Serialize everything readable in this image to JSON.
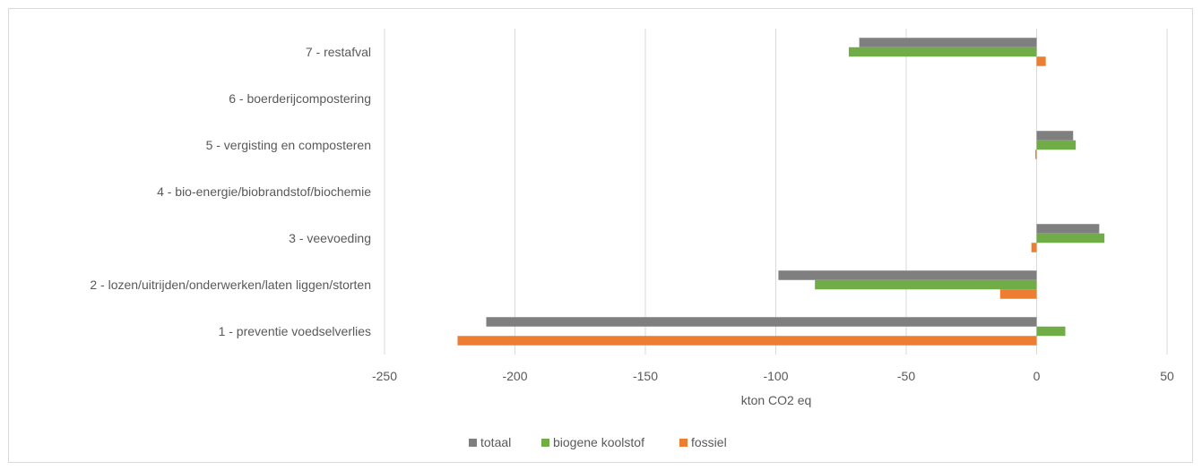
{
  "chart_data": {
    "type": "bar",
    "orientation": "horizontal",
    "categories": [
      "7 - restafval",
      "6 - boerderijcompostering",
      "5 - vergisting en composteren",
      "4 - bio-energie/biobrandstof/biochemie",
      "3 - veevoeding",
      "2 - lozen/uitrijden/onderwerken/laten liggen/storten",
      "1 - preventie voedselverlies"
    ],
    "series": [
      {
        "name": "totaal",
        "color": "#7f7f7f",
        "values": [
          -68,
          0,
          14,
          0,
          24,
          -99,
          -211
        ]
      },
      {
        "name": "biogene koolstof",
        "color": "#70ad47",
        "values": [
          -72,
          0,
          15,
          0,
          26,
          -85,
          11
        ]
      },
      {
        "name": "fossiel",
        "color": "#ed7d31",
        "values": [
          3.5,
          0,
          -0.5,
          0,
          -2,
          -14,
          -222
        ]
      }
    ],
    "xlabel": "kton CO2 eq",
    "xlim": [
      -250,
      50
    ],
    "xticks": [
      -250,
      -200,
      -150,
      -100,
      -50,
      0,
      50
    ],
    "grid": true,
    "legend": "bottom"
  }
}
